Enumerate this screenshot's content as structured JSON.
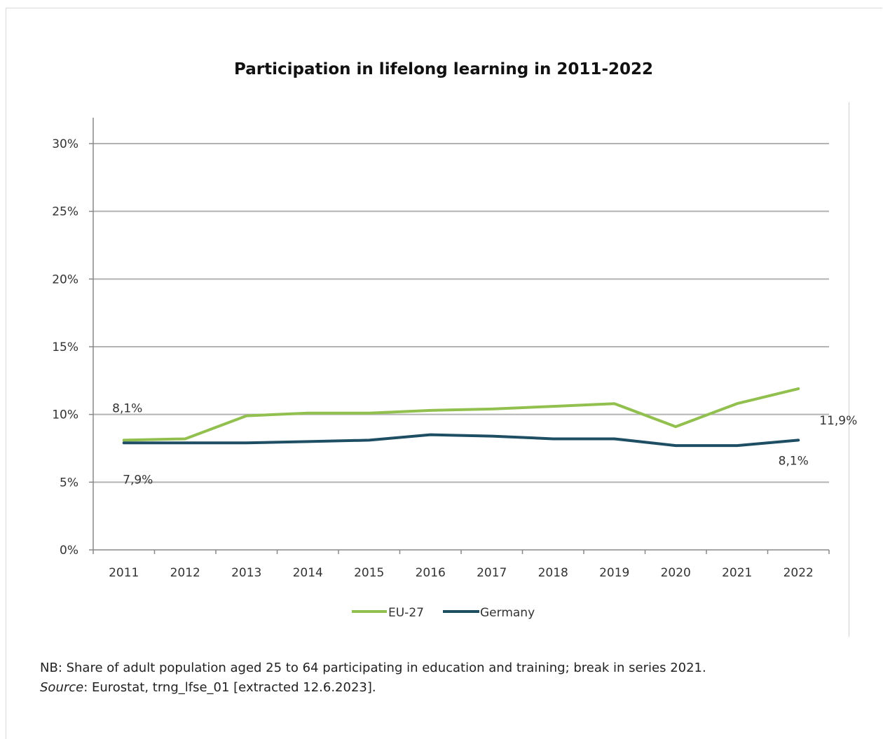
{
  "chart_data": {
    "type": "line",
    "title": "Participation in lifelong learning in 2011-2022",
    "categories": [
      "2011",
      "2012",
      "2013",
      "2014",
      "2015",
      "2016",
      "2017",
      "2018",
      "2019",
      "2020",
      "2021",
      "2022"
    ],
    "series": [
      {
        "name": "EU-27",
        "color": "#92c04f",
        "values": [
          8.1,
          8.2,
          9.9,
          10.1,
          10.1,
          10.3,
          10.4,
          10.6,
          10.8,
          9.1,
          10.8,
          11.9
        ]
      },
      {
        "name": "Germany",
        "color": "#1e4e63",
        "values": [
          7.9,
          7.9,
          7.9,
          8.0,
          8.1,
          8.5,
          8.4,
          8.2,
          8.2,
          7.7,
          7.7,
          8.1
        ]
      }
    ],
    "ylim": [
      0,
      30
    ],
    "yticks": [
      0,
      5,
      10,
      15,
      20,
      25,
      30
    ],
    "ytick_labels": [
      "0%",
      "5%",
      "10%",
      "15%",
      "20%",
      "25%",
      "30%"
    ],
    "grid": true,
    "legend": "bottom",
    "annotations": [
      {
        "text": "8,1%",
        "series": 0,
        "index": 0
      },
      {
        "text": "7,9%",
        "series": 1,
        "index": 0
      },
      {
        "text": "11,9%",
        "series": 0,
        "index": 11
      },
      {
        "text": "8,1%",
        "series": 1,
        "index": 11
      }
    ]
  },
  "note": {
    "line1": "NB: Share of adult population aged 25 to 64 participating in education and training; break in series 2021.",
    "source_label": "Source",
    "source_rest": ": Eurostat, trng_lfse_01 [extracted 12.6.2023]."
  }
}
